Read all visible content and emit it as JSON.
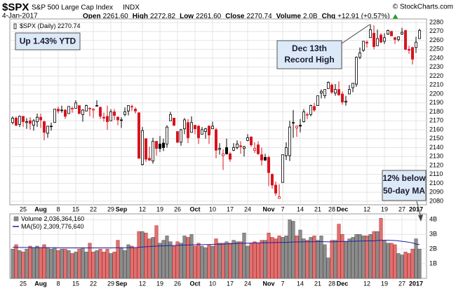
{
  "header": {
    "symbol": "$SPX",
    "name": "S&P 500 Large Cap Index",
    "exchange": "INDX",
    "credit": "© StockCharts.com",
    "date": "4-Jan-2017",
    "quote": [
      {
        "label": "Open",
        "value": "2261.60"
      },
      {
        "label": "High",
        "value": "2272.82"
      },
      {
        "label": "Low",
        "value": "2261.60"
      },
      {
        "label": "Close",
        "value": "2270.74"
      },
      {
        "label": "Volume",
        "value": "2.0B"
      },
      {
        "label": "Chg",
        "value": "+12.91 (+0.57%)"
      }
    ]
  },
  "chart_data": [
    {
      "type": "candlestick",
      "legend_label": "$SPX (Daily) 2270.74",
      "up_color": "#000000",
      "down_color": "#d9141e",
      "grid": true,
      "categories": [
        null,
        null,
        null,
        "25",
        null,
        null,
        null,
        null,
        "Aug",
        null,
        null,
        null,
        null,
        "8",
        null,
        null,
        null,
        null,
        "15",
        null,
        null,
        null,
        null,
        "22",
        null,
        null,
        null,
        null,
        "29",
        null,
        null,
        "Sep",
        null,
        null,
        null,
        null,
        null,
        "12",
        null,
        null,
        null,
        null,
        "19",
        null,
        null,
        null,
        null,
        "26",
        null,
        null,
        null,
        null,
        "Oct",
        null,
        null,
        null,
        null,
        "10",
        null,
        null,
        null,
        null,
        "17",
        null,
        null,
        null,
        null,
        "24",
        null,
        null,
        null,
        null,
        null,
        "Nov",
        null,
        null,
        null,
        "7",
        null,
        null,
        null,
        null,
        "14",
        null,
        null,
        null,
        null,
        "21",
        null,
        null,
        null,
        "28",
        null,
        null,
        "Dec",
        null,
        null,
        null,
        null,
        null,
        null,
        "12",
        null,
        null,
        null,
        null,
        "19",
        null,
        null,
        null,
        null,
        "27",
        null,
        null,
        null,
        "2017",
        null
      ],
      "ohlc": [
        [
          2168,
          2175,
          2166,
          2173
        ],
        [
          2173,
          2175,
          2164,
          2165
        ],
        [
          2166,
          2176,
          2163,
          2175
        ],
        [
          2175,
          2175,
          2163,
          2169
        ],
        [
          2168,
          2173,
          2161,
          2169
        ],
        [
          2170,
          2174,
          2160,
          2167
        ],
        [
          2165,
          2172,
          2159,
          2170
        ],
        [
          2169,
          2178,
          2163,
          2174
        ],
        [
          2174,
          2178,
          2162,
          2171
        ],
        [
          2169,
          2170,
          2148,
          2157
        ],
        [
          2156,
          2164,
          2151,
          2164
        ],
        [
          2164,
          2168,
          2159,
          2164
        ],
        [
          2168,
          2183,
          2168,
          2183
        ],
        [
          2183,
          2186,
          2178,
          2181
        ],
        [
          2182,
          2187,
          2179,
          2182
        ],
        [
          2182,
          2183,
          2172,
          2175
        ],
        [
          2178,
          2186,
          2178,
          2186
        ],
        [
          2183,
          2186,
          2179,
          2184
        ],
        [
          2184,
          2193,
          2184,
          2190
        ],
        [
          2187,
          2187,
          2178,
          2178
        ],
        [
          2177,
          2183,
          2169,
          2182
        ],
        [
          2181,
          2188,
          2181,
          2187
        ],
        [
          2184,
          2185,
          2175,
          2184
        ],
        [
          2182,
          2184,
          2173,
          2183
        ],
        [
          2187,
          2193,
          2186,
          2187
        ],
        [
          2185,
          2186,
          2172,
          2175
        ],
        [
          2174,
          2179,
          2169,
          2173
        ],
        [
          2175,
          2187,
          2160,
          2169
        ],
        [
          2170,
          2183,
          2170,
          2180
        ],
        [
          2180,
          2183,
          2171,
          2176
        ],
        [
          2174,
          2175,
          2165,
          2171
        ],
        [
          2171,
          2174,
          2162,
          2171
        ],
        [
          2177,
          2185,
          2175,
          2180
        ],
        [
          2181,
          2187,
          2176,
          2187
        ],
        [
          2186,
          2188,
          2181,
          2186
        ],
        [
          2183,
          2185,
          2178,
          2181
        ],
        [
          2179,
          2179,
          2128,
          2128
        ],
        [
          2121,
          2163,
          2120,
          2159
        ],
        [
          2150,
          2150,
          2124,
          2127
        ],
        [
          2128,
          2141,
          2125,
          2126
        ],
        [
          2125,
          2151,
          2122,
          2147
        ],
        [
          2147,
          2147,
          2131,
          2139
        ],
        [
          2144,
          2153,
          2135,
          2139
        ],
        [
          2145,
          2150,
          2136,
          2140
        ],
        [
          2144,
          2165,
          2140,
          2163
        ],
        [
          2170,
          2180,
          2170,
          2177
        ],
        [
          2173,
          2173,
          2164,
          2165
        ],
        [
          2158,
          2158,
          2145,
          2146
        ],
        [
          2146,
          2161,
          2142,
          2160
        ],
        [
          2161,
          2173,
          2155,
          2171
        ],
        [
          2168,
          2172,
          2145,
          2151
        ],
        [
          2157,
          2175,
          2157,
          2168
        ],
        [
          2165,
          2165,
          2155,
          2161
        ],
        [
          2164,
          2165,
          2144,
          2151
        ],
        [
          2155,
          2163,
          2155,
          2160
        ],
        [
          2158,
          2162,
          2150,
          2161
        ],
        [
          2164,
          2165,
          2144,
          2154
        ],
        [
          2161,
          2169,
          2161,
          2164
        ],
        [
          2160,
          2162,
          2128,
          2137
        ],
        [
          2138,
          2145,
          2132,
          2139
        ],
        [
          2131,
          2138,
          2115,
          2133
        ],
        [
          2140,
          2150,
          2132,
          2133
        ],
        [
          2133,
          2135,
          2124,
          2127
        ],
        [
          2137,
          2145,
          2136,
          2140
        ],
        [
          2140,
          2148,
          2138,
          2144
        ],
        [
          2142,
          2147,
          2133,
          2141
        ],
        [
          2139,
          2142,
          2130,
          2141
        ],
        [
          2148,
          2155,
          2147,
          2151
        ],
        [
          2152,
          2152,
          2141,
          2143
        ],
        [
          2137,
          2146,
          2134,
          2139
        ],
        [
          2143,
          2147,
          2132,
          2133
        ],
        [
          2132,
          2140,
          2120,
          2126
        ],
        [
          2129,
          2133,
          2125,
          2126
        ],
        [
          2129,
          2131,
          2097,
          2112
        ],
        [
          2110,
          2111,
          2094,
          2098
        ],
        [
          2098,
          2102,
          2086,
          2089
        ],
        [
          2083,
          2099,
          2083,
          2085
        ],
        [
          2101,
          2132,
          2101,
          2132
        ],
        [
          2131,
          2146,
          2126,
          2140
        ],
        [
          2131,
          2170,
          2125,
          2163
        ],
        [
          2168,
          2182,
          2151,
          2168
        ],
        [
          2162,
          2165,
          2152,
          2164
        ],
        [
          2165,
          2172,
          2157,
          2164
        ],
        [
          2169,
          2183,
          2168,
          2180
        ],
        [
          2177,
          2179,
          2172,
          2177
        ],
        [
          2177,
          2188,
          2175,
          2187
        ],
        [
          2186,
          2190,
          2180,
          2182
        ],
        [
          2187,
          2198,
          2187,
          2198
        ],
        [
          2201,
          2205,
          2195,
          2203
        ],
        [
          2198,
          2204,
          2195,
          2205
        ],
        [
          2206,
          2214,
          2206,
          2213
        ],
        [
          2210,
          2212,
          2200,
          2202
        ],
        [
          2201,
          2211,
          2198,
          2205
        ],
        [
          2205,
          2214,
          2198,
          2199
        ],
        [
          2200,
          2203,
          2188,
          2191
        ],
        [
          2191,
          2198,
          2187,
          2192
        ],
        [
          2200,
          2210,
          2200,
          2205
        ],
        [
          2207,
          2212,
          2202,
          2212
        ],
        [
          2211,
          2242,
          2208,
          2241
        ],
        [
          2241,
          2252,
          2239,
          2246
        ],
        [
          2249,
          2259,
          2247,
          2259
        ],
        [
          2258,
          2260,
          2252,
          2257
        ],
        [
          2263,
          2278,
          2263,
          2272
        ],
        [
          2268,
          2277,
          2250,
          2253
        ],
        [
          2254,
          2272,
          2254,
          2262
        ],
        [
          2266,
          2268,
          2257,
          2258
        ],
        [
          2259,
          2268,
          2256,
          2263
        ],
        [
          2267,
          2272,
          2266,
          2271
        ],
        [
          2270,
          2271,
          2265,
          2265
        ],
        [
          2263,
          2264,
          2256,
          2261
        ],
        [
          2261,
          2264,
          2259,
          2264
        ],
        [
          2267,
          2274,
          2266,
          2269
        ],
        [
          2271,
          2272,
          2249,
          2250
        ],
        [
          2250,
          2254,
          2245,
          2249
        ],
        [
          2252,
          2253,
          2233,
          2239
        ],
        [
          2252,
          2264,
          2246,
          2258
        ],
        [
          2262,
          2273,
          2262,
          2271
        ]
      ],
      "ylim": [
        2076,
        2284
      ],
      "yticks": [
        2080,
        2090,
        2100,
        2110,
        2120,
        2130,
        2140,
        2150,
        2160,
        2170,
        2180,
        2190,
        2200,
        2210,
        2220,
        2230,
        2240,
        2250,
        2260,
        2270,
        2280
      ],
      "annotations": [
        {
          "text": [
            "Up 1.43% YTD"
          ]
        },
        {
          "text": [
            "Dec 13th",
            "Record High"
          ]
        },
        {
          "text": [
            "12% below",
            "50-day MA"
          ]
        }
      ]
    },
    {
      "type": "bar",
      "grid": true,
      "up_color": "#8c8c8c",
      "down_color": "#e07070",
      "categories": [
        null,
        null,
        null,
        "25",
        null,
        null,
        null,
        null,
        "Aug",
        null,
        null,
        null,
        null,
        "8",
        null,
        null,
        null,
        null,
        "15",
        null,
        null,
        null,
        null,
        "22",
        null,
        null,
        null,
        null,
        "29",
        null,
        null,
        "Sep",
        null,
        null,
        null,
        null,
        null,
        "12",
        null,
        null,
        null,
        null,
        "19",
        null,
        null,
        null,
        null,
        "26",
        null,
        null,
        null,
        null,
        "Oct",
        null,
        null,
        null,
        null,
        "10",
        null,
        null,
        null,
        null,
        "17",
        null,
        null,
        null,
        null,
        "24",
        null,
        null,
        null,
        null,
        null,
        "Nov",
        null,
        null,
        null,
        "7",
        null,
        null,
        null,
        null,
        "14",
        null,
        null,
        null,
        null,
        "21",
        null,
        null,
        null,
        "28",
        null,
        null,
        "Dec",
        null,
        null,
        null,
        null,
        null,
        null,
        "12",
        null,
        null,
        null,
        null,
        "19",
        null,
        null,
        null,
        null,
        "27",
        null,
        null,
        null,
        "2017",
        null
      ],
      "series": [
        {
          "name": "Volume 2,036,364,160",
          "color": "#8c8c8c",
          "values": [
            2.0,
            2.3,
            1.9,
            1.8,
            2.0,
            2.2,
            2.1,
            2.2,
            2.1,
            2.3,
            2.1,
            2.0,
            2.1,
            1.9,
            2.0,
            2.0,
            1.9,
            1.7,
            1.8,
            2.0,
            2.1,
            1.8,
            2.4,
            1.8,
            1.9,
            2.0,
            1.8,
            2.0,
            1.7,
            1.8,
            2.6,
            2.1,
            1.9,
            2.3,
            2.2,
            2.1,
            3.2,
            3.2,
            3.1,
            2.7,
            2.8,
            3.6,
            2.4,
            2.6,
            2.9,
            2.5,
            2.2,
            2.5,
            2.4,
            2.9,
            2.8,
            3.0,
            2.2,
            2.4,
            2.2,
            2.1,
            2.3,
            2.2,
            2.7,
            2.4,
            2.4,
            2.5,
            2.4,
            2.6,
            2.5,
            2.5,
            3.1,
            2.2,
            2.4,
            2.5,
            2.4,
            2.6,
            2.6,
            3.1,
            2.8,
            2.7,
            2.9,
            2.8,
            2.9,
            4.0,
            3.9,
            2.9,
            3.3,
            2.7,
            2.6,
            2.8,
            2.9,
            2.6,
            2.9,
            2.3,
            1.4,
            2.6,
            2.6,
            3.7,
            3.0,
            2.5,
            2.7,
            2.8,
            3.0,
            3.0,
            2.9,
            2.9,
            3.0,
            3.2,
            3.2,
            4.1,
            2.6,
            2.4,
            2.4,
            2.3,
            1.7,
            1.6,
            1.8,
            1.7,
            2.0,
            2.7,
            2.0
          ]
        },
        {
          "name": "MA(50) 2,309,776,640",
          "color": "#1f1f9e",
          "values": [
            2.12,
            2.12,
            2.11,
            2.11,
            2.11,
            2.1,
            2.1,
            2.1,
            2.1,
            2.1,
            2.1,
            2.09,
            2.09,
            2.09,
            2.08,
            2.08,
            2.08,
            2.08,
            2.08,
            2.08,
            2.08,
            2.08,
            2.08,
            2.08,
            2.08,
            2.08,
            2.08,
            2.08,
            2.08,
            2.09,
            2.09,
            2.09,
            2.09,
            2.1,
            2.1,
            2.1,
            2.12,
            2.14,
            2.16,
            2.17,
            2.19,
            2.2,
            2.21,
            2.22,
            2.23,
            2.24,
            2.24,
            2.25,
            2.26,
            2.27,
            2.28,
            2.29,
            2.29,
            2.3,
            2.3,
            2.31,
            2.31,
            2.32,
            2.33,
            2.33,
            2.34,
            2.35,
            2.36,
            2.37,
            2.38,
            2.39,
            2.4,
            2.4,
            2.41,
            2.42,
            2.42,
            2.43,
            2.43,
            2.44,
            2.44,
            2.44,
            2.45,
            2.45,
            2.45,
            2.47,
            2.48,
            2.48,
            2.49,
            2.49,
            2.5,
            2.5,
            2.5,
            2.51,
            2.51,
            2.5,
            2.49,
            2.49,
            2.5,
            2.51,
            2.52,
            2.52,
            2.53,
            2.53,
            2.54,
            2.54,
            2.55,
            2.55,
            2.56,
            2.56,
            2.58,
            2.6,
            2.6,
            2.6,
            2.59,
            2.58,
            2.56,
            2.53,
            2.5,
            2.46,
            2.42,
            2.34,
            2.31
          ]
        }
      ],
      "ylim": [
        0,
        4.4
      ],
      "yticks": [
        {
          "value": 1,
          "label": "1B"
        },
        {
          "value": 2,
          "label": "2B"
        },
        {
          "value": 3,
          "label": "3B"
        },
        {
          "value": 4,
          "label": "4B"
        }
      ]
    }
  ]
}
